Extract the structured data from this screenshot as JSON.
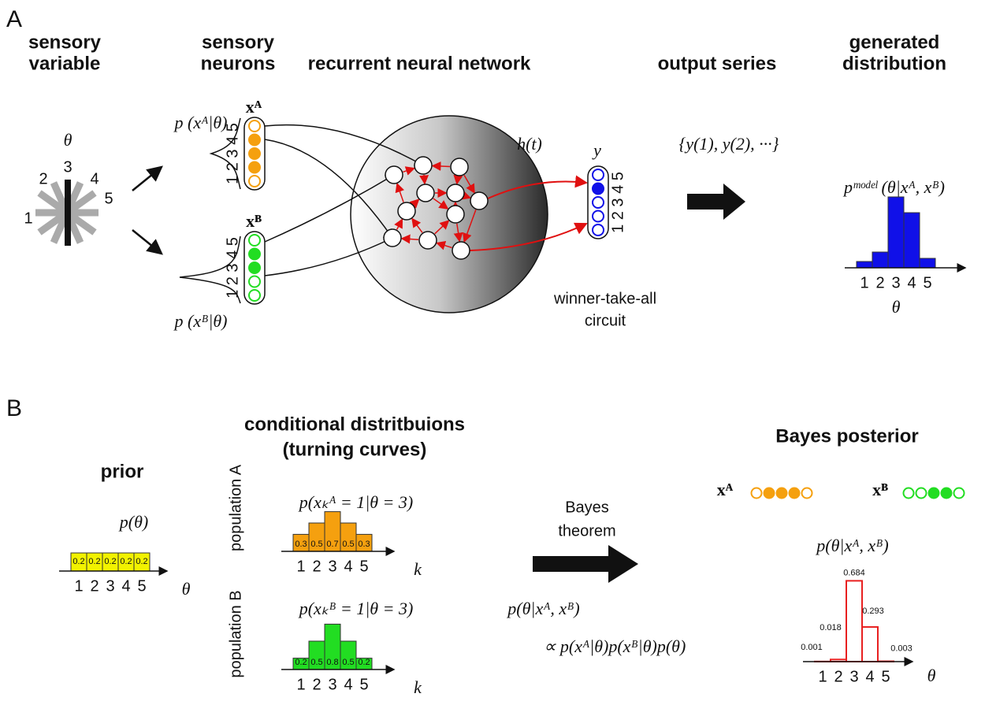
{
  "panel_a": {
    "label": "A",
    "sensory_variable": {
      "title": [
        "sensory",
        "variable"
      ],
      "symbol": "θ",
      "orientations": [
        "1",
        "2",
        "3",
        "4",
        "5"
      ]
    },
    "sensory_neurons": {
      "title": [
        "sensory",
        "neurons"
      ],
      "population_a": {
        "name": "xᴬ",
        "likelihood": "p (xᴬ|θ)",
        "indices": "1 2 3 4 5",
        "states": [
          0,
          1,
          1,
          1,
          0
        ],
        "color": "#f5a00f"
      },
      "population_b": {
        "name": "xᴮ",
        "likelihood": "p (xᴮ|θ)",
        "indices": "1 2 3 4 5",
        "states": [
          0,
          0,
          1,
          1,
          0
        ],
        "color": "#22dd22"
      }
    },
    "network": {
      "title": "recurrent neural network",
      "state": "h(t)"
    },
    "output": {
      "title": "output series",
      "name": "y",
      "indices": "1 2 3 4 5",
      "states": [
        0,
        0,
        0,
        1,
        0
      ],
      "color": "#1010e8",
      "circuit": [
        "winner-take-all",
        "circuit"
      ],
      "series": "{y(1), y(2), ···}"
    },
    "generated": {
      "title": [
        "generated",
        "distribution"
      ],
      "formula": "pᵐᵒᵈᵉˡ (θ|xᴬ, xᴮ)",
      "categories": [
        "1",
        "2",
        "3",
        "4",
        "5"
      ],
      "values": [
        0.04,
        0.1,
        0.45,
        0.35,
        0.06
      ],
      "color": "#1010e8",
      "axis_label": "θ"
    }
  },
  "panel_b": {
    "label": "B",
    "prior": {
      "title": "prior",
      "formula": "p(θ)",
      "categories": [
        "1",
        "2",
        "3",
        "4",
        "5"
      ],
      "values": [
        0.2,
        0.2,
        0.2,
        0.2,
        0.2
      ],
      "color": "#f2f200",
      "axis_label": "θ"
    },
    "conditional": {
      "title": [
        "conditional distritbuions",
        "(turning curves)"
      ],
      "population_a": {
        "name": "population A",
        "formula": "p(xₖᴬ = 1|θ = 3)",
        "categories": [
          "1",
          "2",
          "3",
          "4",
          "5"
        ],
        "values": [
          0.3,
          0.5,
          0.7,
          0.5,
          0.3
        ],
        "color": "#f5a00f",
        "axis_label": "k"
      },
      "population_b": {
        "name": "population B",
        "formula": "p(xₖᴮ = 1|θ = 3)",
        "categories": [
          "1",
          "2",
          "3",
          "4",
          "5"
        ],
        "values": [
          0.2,
          0.5,
          0.8,
          0.5,
          0.2
        ],
        "color": "#22dd22",
        "axis_label": "k"
      }
    },
    "bayes": {
      "label": [
        "Bayes",
        "theorem"
      ],
      "formula": "p(θ|xᴬ, xᴮ)",
      "proportional": "∝ p(xᴬ|θ)p(xᴮ|θ)p(θ)"
    },
    "posterior": {
      "title": "Bayes posterior",
      "population_a": {
        "name": "xᴬ",
        "states": [
          0,
          1,
          1,
          1,
          0
        ],
        "color": "#f5a00f"
      },
      "population_b": {
        "name": "xᴮ",
        "states": [
          0,
          0,
          1,
          1,
          0
        ],
        "color": "#22dd22"
      },
      "formula": "p(θ|xᴬ, xᴮ)",
      "categories": [
        "1",
        "2",
        "3",
        "4",
        "5"
      ],
      "values": [
        0.001,
        0.018,
        0.684,
        0.293,
        0.003
      ],
      "color": "#e82020",
      "axis_label": "θ"
    }
  }
}
